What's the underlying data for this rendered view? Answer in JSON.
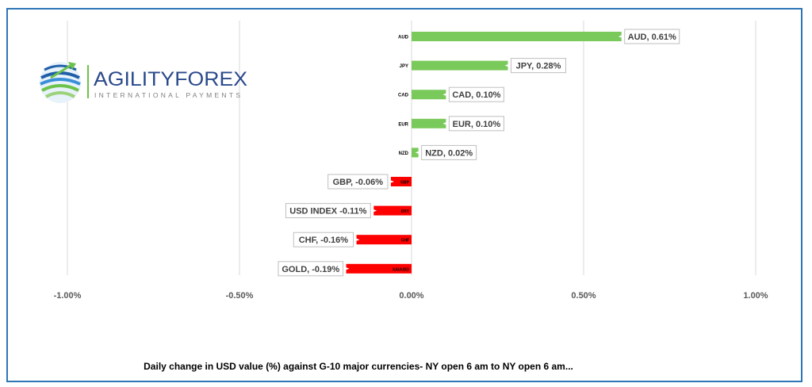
{
  "logo": {
    "brand_text": "AGILITYFOREX",
    "tagline": "INTERNATIONAL PAYMENTS",
    "globe_colors": [
      "#1f5fa8",
      "#3a8fd8",
      "#6cc24a",
      "#9bd27a"
    ]
  },
  "chart_data": {
    "type": "bar",
    "orientation": "horizontal",
    "categories": [
      "AUD",
      "JPY",
      "CAD",
      "EUR",
      "NZD",
      "GBP",
      "DXY",
      "CHF",
      "XAUUSD"
    ],
    "values": [
      0.61,
      0.28,
      0.1,
      0.1,
      0.02,
      -0.06,
      -0.11,
      -0.16,
      -0.19
    ],
    "data_labels": [
      "AUD, 0.61%",
      "JPY, 0.28%",
      "CAD, 0.10%",
      "EUR, 0.10%",
      "NZD, 0.02%",
      "GBP, -0.06%",
      "USD INDEX -0.11%",
      "CHF, -0.16%",
      "GOLD, -0.19%"
    ],
    "xlim": [
      -1.0,
      1.0
    ],
    "xticks": [
      -1.0,
      -0.5,
      0.0,
      0.5,
      1.0
    ],
    "xtick_labels": [
      "-1.00%",
      "-0.50%",
      "0.00%",
      "0.50%",
      "1.00%"
    ],
    "grid": "vertical",
    "legend": "none",
    "colors": {
      "positive": "#7ac95b",
      "negative": "#ff0000",
      "grid": "#d9d9d9",
      "label_border": "#bfbfbf"
    },
    "title": "Daily change in  USD value (%)  against  G-10 major currencies- NY open 6 am to NY open 6 am..."
  }
}
